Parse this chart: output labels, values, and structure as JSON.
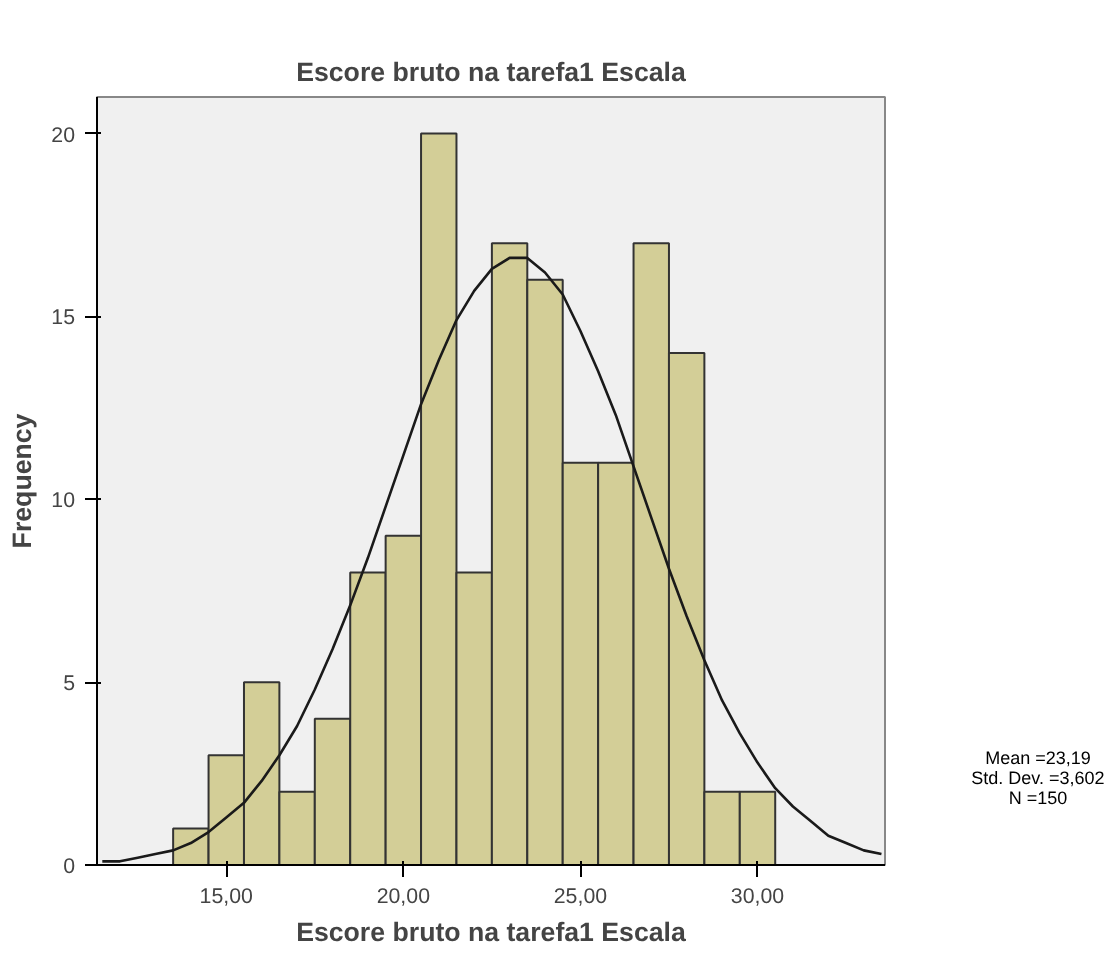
{
  "chart_data": {
    "type": "histogram",
    "title": "Escore bruto na tarefa1 Escala",
    "xlabel": "Escore bruto na tarefa1 Escala",
    "ylabel": "Frequency",
    "bins": [
      13.5,
      14.5,
      15.5,
      16.5,
      17.5,
      18.5,
      19.5,
      20.5,
      21.5,
      22.5,
      23.5,
      24.5,
      25.5,
      26.5,
      27.5,
      28.5,
      29.5,
      30.5
    ],
    "values": [
      1,
      3,
      5,
      2,
      4,
      8,
      9,
      20,
      8,
      17,
      16,
      11,
      11,
      17,
      14,
      2,
      2
    ],
    "color": "#d3ce97",
    "series": [
      {
        "type": "line",
        "color": "#1a1a1a",
        "x": [
          11.5,
          12,
          12.5,
          13,
          13.5,
          14,
          14.5,
          15,
          15.5,
          16,
          16.5,
          17,
          17.5,
          18,
          18.5,
          19,
          19.5,
          20,
          20.5,
          21,
          21.5,
          22,
          22.5,
          23,
          23.5,
          24,
          24.5,
          25,
          25.5,
          26,
          26.5,
          27,
          27.5,
          28,
          28.5,
          29,
          29.5,
          30,
          30.5,
          31,
          31.5,
          32,
          32.5,
          33,
          33.5
        ],
        "values": [
          0.1,
          0.1,
          0.2,
          0.3,
          0.4,
          0.6,
          0.9,
          1.3,
          1.7,
          2.3,
          3.0,
          3.8,
          4.8,
          5.9,
          7.1,
          8.4,
          9.8,
          11.2,
          12.6,
          13.8,
          14.9,
          15.7,
          16.3,
          16.6,
          16.6,
          16.2,
          15.6,
          14.6,
          13.5,
          12.3,
          10.9,
          9.5,
          8.1,
          6.8,
          5.6,
          4.5,
          3.6,
          2.8,
          2.1,
          1.6,
          1.2,
          0.8,
          0.6,
          0.4,
          0.3
        ]
      }
    ],
    "xlim": [
      11.35,
      33.6
    ],
    "ylim": [
      0,
      21
    ],
    "xticks": [
      {
        "value": 15,
        "label": "15,00"
      },
      {
        "value": 20,
        "label": "20,00"
      },
      {
        "value": 25,
        "label": "25,00"
      },
      {
        "value": 30,
        "label": "30,00"
      }
    ],
    "yticks": [
      0,
      5,
      10,
      15,
      20
    ],
    "grid": false,
    "annotations": [
      "Mean =23,19",
      "Std. Dev. =3,602",
      "N =150"
    ]
  }
}
